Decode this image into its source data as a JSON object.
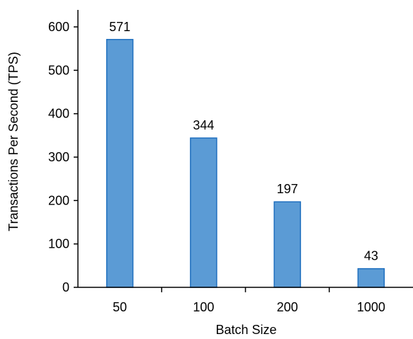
{
  "chart_data": {
    "type": "bar",
    "categories": [
      "50",
      "100",
      "200",
      "1000"
    ],
    "values": [
      571,
      344,
      197,
      43
    ],
    "data_labels": [
      "571",
      "344",
      "197",
      "43"
    ],
    "title": "",
    "xlabel": "Batch Size",
    "ylabel": "Transactions Per Second (TPS)",
    "ylim": [
      0,
      640
    ],
    "yticks": [
      0,
      100,
      200,
      300,
      400,
      500,
      600
    ],
    "grid": false,
    "legend": "none",
    "bar_color": "#5b9bd5",
    "bar_edge_color": "#1f6fbf"
  }
}
